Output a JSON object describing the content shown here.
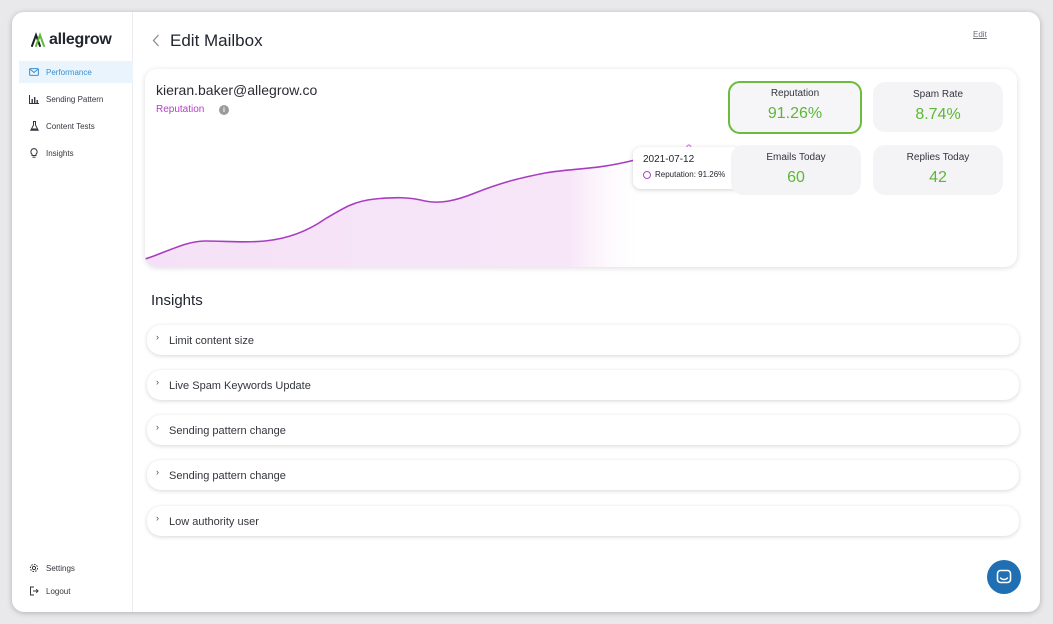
{
  "app": {
    "logo_text": "allegrow"
  },
  "sidebar": {
    "items": [
      {
        "label": "Performance",
        "icon": "mail-icon",
        "active": true
      },
      {
        "label": "Sending Pattern",
        "icon": "bar-chart-icon",
        "active": false
      },
      {
        "label": "Content Tests",
        "icon": "flask-icon",
        "active": false
      },
      {
        "label": "Insights",
        "icon": "lightbulb-icon",
        "active": false
      }
    ],
    "bottom": [
      {
        "label": "Settings",
        "icon": "gear-icon"
      },
      {
        "label": "Logout",
        "icon": "logout-icon"
      }
    ]
  },
  "header": {
    "title": "Edit Mailbox",
    "edit_label": "Edit"
  },
  "performance": {
    "email": "kieran.baker@allegrow.co",
    "metric_label": "Reputation",
    "info_icon": "i",
    "tooltip": {
      "date": "2021-07-12",
      "text": "Reputation: 91.26%"
    },
    "stats": [
      {
        "label": "Reputation",
        "value": "91.26%",
        "highlight": true
      },
      {
        "label": "Spam Rate",
        "value": "8.74%",
        "highlight": false
      },
      {
        "label": "Emails Today",
        "value": "60",
        "highlight": false
      },
      {
        "label": "Replies Today",
        "value": "42",
        "highlight": false
      }
    ],
    "colors": {
      "line": "#b43ec7",
      "positive": "#5db833"
    }
  },
  "insights": {
    "title": "Insights",
    "items": [
      {
        "label": "Limit content size"
      },
      {
        "label": "Live Spam Keywords Update"
      },
      {
        "label": "Sending pattern change"
      },
      {
        "label": "Sending pattern change"
      },
      {
        "label": "Low authority user"
      }
    ]
  }
}
